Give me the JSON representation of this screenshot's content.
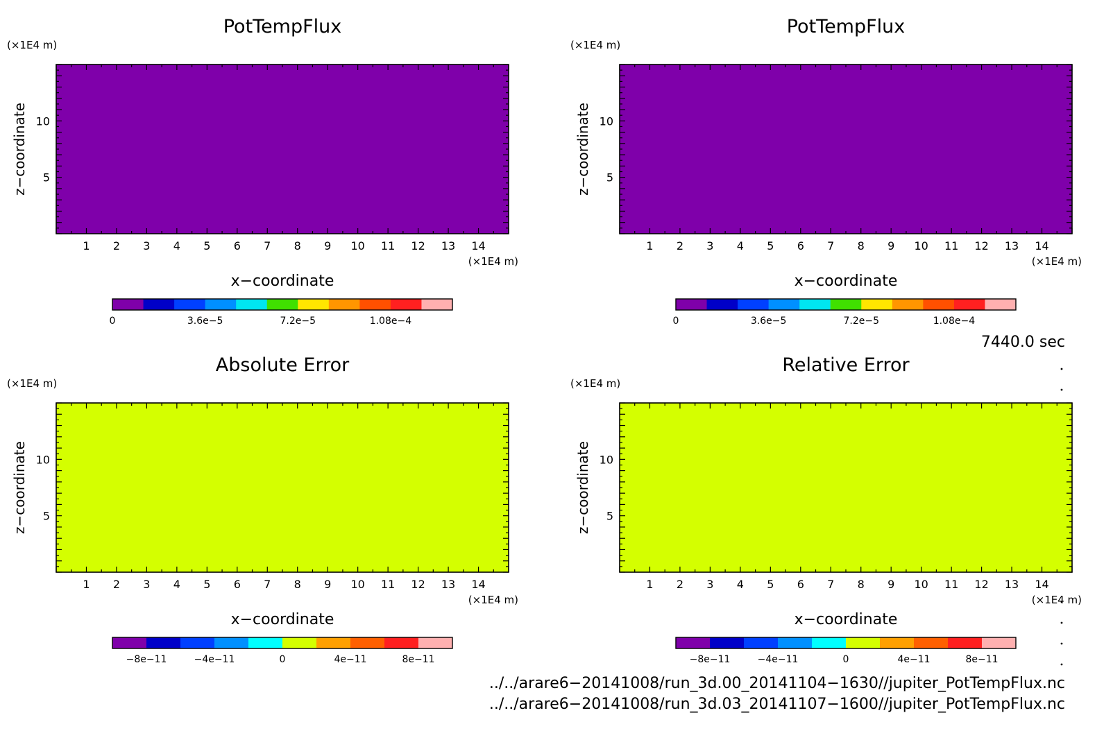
{
  "chart_data": [
    {
      "type": "heatmap",
      "title": "PotTempFlux",
      "xlabel": "x−coordinate",
      "ylabel": "z−coordinate",
      "x_unit": "(×1E4 m)",
      "y_unit": "(×1E4 m)",
      "xlim": [
        0,
        15
      ],
      "ylim": [
        0,
        15
      ],
      "x_ticks": [
        1,
        2,
        3,
        4,
        5,
        6,
        7,
        8,
        9,
        10,
        11,
        12,
        13,
        14
      ],
      "y_ticks": [
        5,
        10
      ],
      "fill_color": "#7f00aa",
      "field_value": 0,
      "colorbar": {
        "colors": [
          "#7f00aa",
          "#0000c8",
          "#0040ff",
          "#0090ff",
          "#00e6f0",
          "#40e000",
          "#ffe600",
          "#ff9600",
          "#ff5000",
          "#ff2020",
          "#ffb0b0"
        ],
        "tick_labels": [
          "0",
          "3.6e−5",
          "7.2e−5",
          "1.08e−4"
        ],
        "tick_values": [
          0,
          3.6e-05,
          7.2e-05,
          0.000108
        ],
        "range": [
          0,
          0.000132
        ]
      }
    },
    {
      "type": "heatmap",
      "title": "PotTempFlux",
      "xlabel": "x−coordinate",
      "ylabel": "z−coordinate",
      "x_unit": "(×1E4 m)",
      "y_unit": "(×1E4 m)",
      "xlim": [
        0,
        15
      ],
      "ylim": [
        0,
        15
      ],
      "x_ticks": [
        1,
        2,
        3,
        4,
        5,
        6,
        7,
        8,
        9,
        10,
        11,
        12,
        13,
        14
      ],
      "y_ticks": [
        5,
        10
      ],
      "fill_color": "#7f00aa",
      "field_value": 0,
      "colorbar": {
        "colors": [
          "#7f00aa",
          "#0000c8",
          "#0040ff",
          "#0090ff",
          "#00e6f0",
          "#40e000",
          "#ffe600",
          "#ff9600",
          "#ff5000",
          "#ff2020",
          "#ffb0b0"
        ],
        "tick_labels": [
          "0",
          "3.6e−5",
          "7.2e−5",
          "1.08e−4"
        ],
        "tick_values": [
          0,
          3.6e-05,
          7.2e-05,
          0.000108
        ],
        "range": [
          0,
          0.000132
        ]
      }
    },
    {
      "type": "heatmap",
      "title": "Absolute Error",
      "xlabel": "x−coordinate",
      "ylabel": "z−coordinate",
      "x_unit": "(×1E4 m)",
      "y_unit": "(×1E4 m)",
      "xlim": [
        0,
        15
      ],
      "ylim": [
        0,
        15
      ],
      "x_ticks": [
        1,
        2,
        3,
        4,
        5,
        6,
        7,
        8,
        9,
        10,
        11,
        12,
        13,
        14
      ],
      "y_ticks": [
        5,
        10
      ],
      "fill_color": "#d4ff00",
      "field_value": 0,
      "colorbar": {
        "colors": [
          "#7f00aa",
          "#0000c8",
          "#0040ff",
          "#0090ff",
          "#00ffff",
          "#d4ff00",
          "#ffa000",
          "#ff6000",
          "#ff2020",
          "#ffb0b0"
        ],
        "tick_labels": [
          "−8e−11",
          "−4e−11",
          "0",
          "4e−11",
          "8e−11"
        ],
        "tick_values": [
          -8e-11,
          -4e-11,
          0,
          4e-11,
          8e-11
        ],
        "range": [
          -1e-10,
          1e-10
        ]
      }
    },
    {
      "type": "heatmap",
      "title": "Relative Error",
      "xlabel": "x−coordinate",
      "ylabel": "z−coordinate",
      "x_unit": "(×1E4 m)",
      "y_unit": "(×1E4 m)",
      "xlim": [
        0,
        15
      ],
      "ylim": [
        0,
        15
      ],
      "x_ticks": [
        1,
        2,
        3,
        4,
        5,
        6,
        7,
        8,
        9,
        10,
        11,
        12,
        13,
        14
      ],
      "y_ticks": [
        5,
        10
      ],
      "fill_color": "#d4ff00",
      "field_value": 0,
      "colorbar": {
        "colors": [
          "#7f00aa",
          "#0000c8",
          "#0040ff",
          "#0090ff",
          "#00ffff",
          "#d4ff00",
          "#ffa000",
          "#ff6000",
          "#ff2020",
          "#ffb0b0"
        ],
        "tick_labels": [
          "−8e−11",
          "−4e−11",
          "0",
          "4e−11",
          "8e−11"
        ],
        "tick_values": [
          -8e-11,
          -4e-11,
          0,
          4e-11,
          8e-11
        ],
        "range": [
          -1e-10,
          1e-10
        ]
      }
    }
  ],
  "time_label": "7440.0 sec",
  "file_paths": [
    "../../arare6−20141008/run_3d.00_20141104−1630//jupiter_PotTempFlux.nc",
    "../../arare6−20141008/run_3d.03_20141107−1600//jupiter_PotTempFlux.nc"
  ]
}
